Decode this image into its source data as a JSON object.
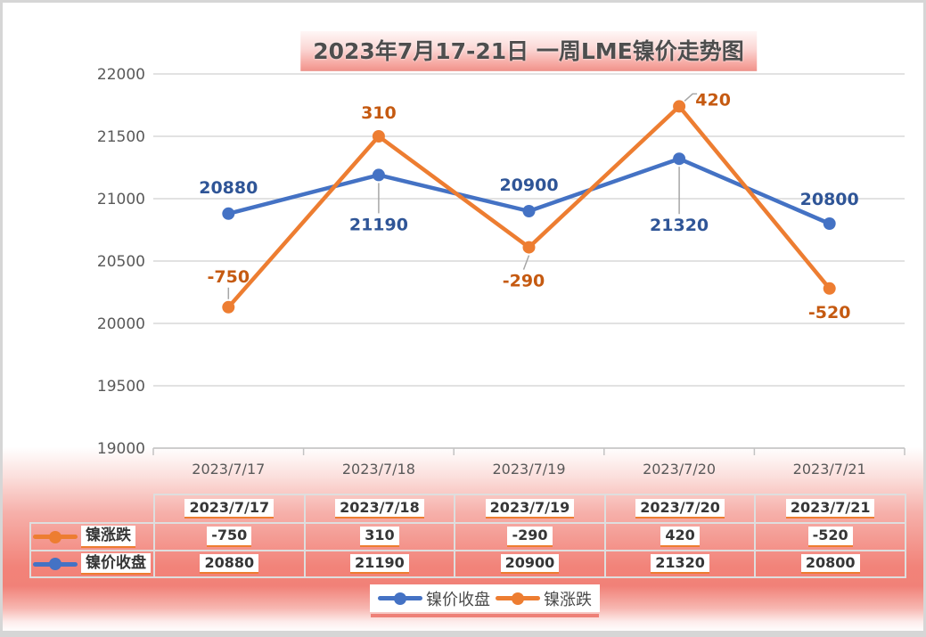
{
  "window": {
    "title": "2023年7月17-21日 一周LME镍价走势图"
  },
  "colors": {
    "close_line": "#4472C4",
    "change_line": "#ED7D31",
    "close_label_text": "#2F5597",
    "change_label_text": "#C55A11",
    "gridline": "#D9D9D9",
    "axis_line": "#C3C3C3",
    "axis_text": "#595959",
    "leader_line": "#A6A6A6",
    "chip_underline": "#ED7D31",
    "table_border": "#DEDEDE",
    "background_salmon": "#F18178"
  },
  "chart_data": {
    "type": "line",
    "title": "2023年7月17-21日 一周LME镍价走势图",
    "categories": [
      "2023/7/17",
      "2023/7/18",
      "2023/7/19",
      "2023/7/20",
      "2023/7/21"
    ],
    "series": [
      {
        "name": "镍价收盘",
        "color": "#4472C4",
        "label_color": "#2F5597",
        "values": [
          20880,
          21190,
          20900,
          21320,
          20800
        ],
        "labels": [
          "20880",
          "21190",
          "20900",
          "21320",
          "20800"
        ],
        "axis": "primary"
      },
      {
        "name": "镍涨跌",
        "color": "#ED7D31",
        "label_color": "#C55A11",
        "values": [
          -750,
          310,
          -290,
          420,
          -520
        ],
        "labels": [
          "-750",
          "310",
          "-290",
          "420",
          "-520"
        ],
        "plotted_as": "close_plus_change"
      }
    ],
    "ylim": [
      19000,
      22000
    ],
    "ytick_step": 500,
    "yticks": [
      "22000",
      "21500",
      "21000",
      "20500",
      "20000",
      "19500",
      "19000"
    ],
    "grid": "horizontal",
    "legend_position": "bottom",
    "marker": "circle"
  },
  "table": {
    "header": [
      "2023/7/17",
      "2023/7/18",
      "2023/7/19",
      "2023/7/20",
      "2023/7/21"
    ],
    "rows": [
      {
        "label": "镍涨跌",
        "marker_color": "#ED7D31",
        "values": [
          "-750",
          "310",
          "-290",
          "420",
          "-520"
        ]
      },
      {
        "label": "镍价收盘",
        "marker_color": "#4472C4",
        "values": [
          "20880",
          "21190",
          "20900",
          "21320",
          "20800"
        ]
      }
    ]
  },
  "legend": {
    "items": [
      {
        "label": "镍价收盘",
        "color": "#4472C4"
      },
      {
        "label": "镍涨跌",
        "color": "#ED7D31"
      }
    ]
  }
}
